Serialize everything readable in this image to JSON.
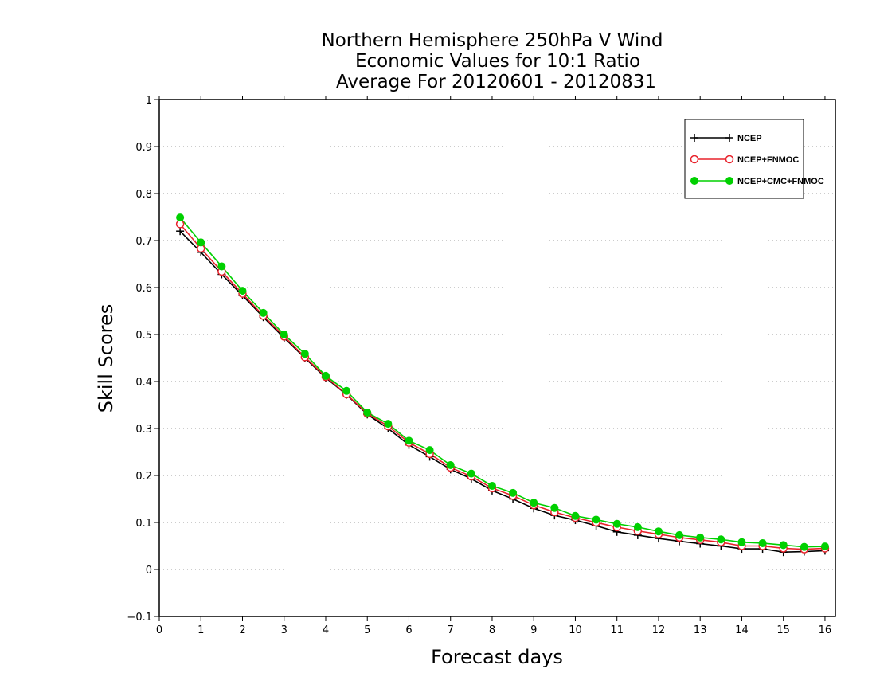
{
  "chart_data": {
    "type": "line",
    "title": [
      "Northern Hemisphere 250hPa V Wind",
      "Economic Values for 10:1 Ratio",
      "Average For 20120601 - 20120831"
    ],
    "xlabel": "Forecast days",
    "ylabel": "Skill Scores",
    "xlim": [
      0,
      16.25
    ],
    "ylim": [
      -0.1,
      1
    ],
    "x_ticks": [
      0,
      1,
      2,
      3,
      4,
      5,
      6,
      7,
      8,
      9,
      10,
      11,
      12,
      13,
      14,
      15,
      16
    ],
    "y_ticks": [
      -0.1,
      0,
      0.1,
      0.2,
      0.3,
      0.4,
      0.5,
      0.6,
      0.7,
      0.8,
      0.9,
      1
    ],
    "y_tick_labels": [
      "−0.1",
      "0",
      "0.1",
      "0.2",
      "0.3",
      "0.4",
      "0.5",
      "0.6",
      "0.7",
      "0.8",
      "0.9",
      "1"
    ],
    "grid": "horizontal dotted",
    "legend_position": "top-right",
    "x": [
      0.5,
      1,
      1.5,
      2,
      2.5,
      3,
      3.5,
      4,
      4.5,
      5,
      5.5,
      6,
      6.5,
      7,
      7.5,
      8,
      8.5,
      9,
      9.5,
      10,
      10.5,
      11,
      11.5,
      12,
      12.5,
      13,
      13.5,
      14,
      14.5,
      15,
      15.5,
      16
    ],
    "series": [
      {
        "name": "NCEP",
        "color": "#000000",
        "marker": "plus",
        "values": [
          0.72,
          0.675,
          0.628,
          0.583,
          0.537,
          0.493,
          0.45,
          0.408,
          0.372,
          0.33,
          0.3,
          0.265,
          0.24,
          0.213,
          0.193,
          0.168,
          0.15,
          0.13,
          0.115,
          0.105,
          0.093,
          0.08,
          0.073,
          0.066,
          0.06,
          0.055,
          0.05,
          0.044,
          0.044,
          0.037,
          0.038,
          0.04
        ]
      },
      {
        "name": "NCEP+FNMOC",
        "color": "#e8222b",
        "marker": "open-circle",
        "values": [
          0.735,
          0.683,
          0.634,
          0.587,
          0.54,
          0.496,
          0.452,
          0.41,
          0.373,
          0.332,
          0.305,
          0.27,
          0.246,
          0.217,
          0.198,
          0.173,
          0.157,
          0.137,
          0.122,
          0.11,
          0.1,
          0.09,
          0.082,
          0.075,
          0.068,
          0.063,
          0.058,
          0.05,
          0.05,
          0.045,
          0.043,
          0.045
        ]
      },
      {
        "name": "NCEP+CMC+FNMOC",
        "color": "#00d000",
        "marker": "filled-circle",
        "values": [
          0.749,
          0.696,
          0.645,
          0.593,
          0.546,
          0.5,
          0.459,
          0.412,
          0.38,
          0.334,
          0.31,
          0.274,
          0.254,
          0.222,
          0.204,
          0.178,
          0.163,
          0.142,
          0.131,
          0.114,
          0.106,
          0.097,
          0.09,
          0.081,
          0.073,
          0.068,
          0.064,
          0.058,
          0.056,
          0.052,
          0.048,
          0.049
        ]
      }
    ]
  }
}
